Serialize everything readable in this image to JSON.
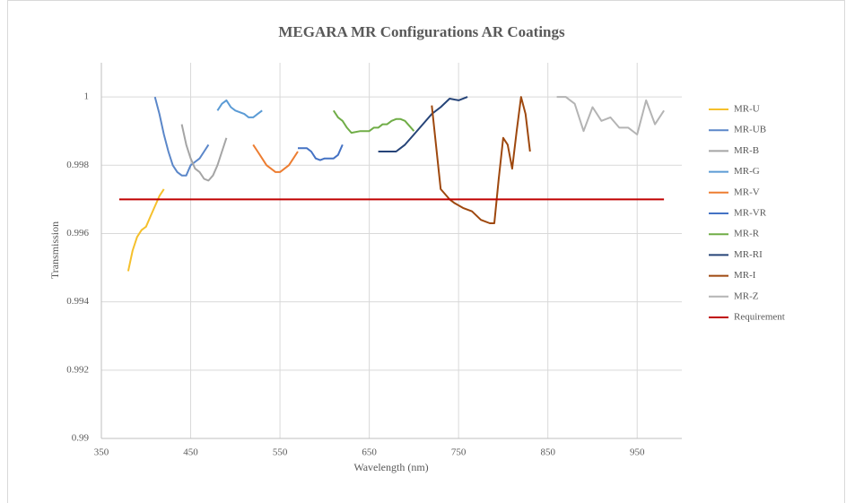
{
  "chart_data": {
    "type": "line",
    "title": "MEGARA MR Configurations AR Coatings",
    "x_label": "Wavelength (nm)",
    "y_label": "Transmission",
    "xlim": [
      350,
      1000
    ],
    "xticks": [
      350,
      450,
      550,
      650,
      750,
      850,
      950
    ],
    "ylim": [
      0.99,
      1.001
    ],
    "yticks": [
      0.99,
      0.992,
      0.994,
      0.996,
      0.998,
      1
    ],
    "grid": true,
    "legend": "right",
    "series": [
      {
        "name": "MR-U",
        "color": "#f5c02c",
        "x": [
          380,
          385,
          390,
          395,
          400,
          405,
          410,
          415,
          420
        ],
        "values": [
          0.9949,
          0.9955,
          0.9959,
          0.9961,
          0.9962,
          0.9965,
          0.9968,
          0.9971,
          0.9973
        ]
      },
      {
        "name": "MR-UB",
        "color": "#5b87c9",
        "x": [
          410,
          415,
          420,
          425,
          430,
          435,
          440,
          445,
          450,
          455,
          460,
          465,
          470
        ],
        "values": [
          1.0,
          0.9995,
          0.9989,
          0.9984,
          0.998,
          0.9978,
          0.9977,
          0.9977,
          0.998,
          0.9981,
          0.9982,
          0.9984,
          0.9986
        ]
      },
      {
        "name": "MR-B",
        "color": "#a5a5a5",
        "x": [
          440,
          445,
          450,
          455,
          460,
          465,
          470,
          475,
          480,
          485,
          490
        ],
        "values": [
          0.9992,
          0.9986,
          0.9982,
          0.9979,
          0.9978,
          0.9976,
          0.99755,
          0.9977,
          0.998,
          0.9984,
          0.9988
        ]
      },
      {
        "name": "MR-G",
        "color": "#5b9bd5",
        "x": [
          480,
          485,
          490,
          495,
          500,
          510,
          515,
          520,
          525,
          530
        ],
        "values": [
          0.9996,
          0.9998,
          0.9999,
          0.9997,
          0.9996,
          0.9995,
          0.9994,
          0.9994,
          0.9995,
          0.9996
        ]
      },
      {
        "name": "MR-V",
        "color": "#ed7d31",
        "x": [
          520,
          525,
          530,
          535,
          540,
          545,
          550,
          555,
          560,
          565,
          570
        ],
        "values": [
          0.9986,
          0.9984,
          0.9982,
          0.998,
          0.9979,
          0.9978,
          0.9978,
          0.9979,
          0.998,
          0.9982,
          0.9984
        ]
      },
      {
        "name": "MR-VR",
        "color": "#4472c4",
        "x": [
          570,
          580,
          585,
          590,
          595,
          600,
          605,
          610,
          615,
          620
        ],
        "values": [
          0.9985,
          0.9985,
          0.9984,
          0.9982,
          0.99815,
          0.9982,
          0.9982,
          0.9982,
          0.9983,
          0.9986
        ]
      },
      {
        "name": "MR-R",
        "color": "#70ad47",
        "x": [
          610,
          615,
          620,
          625,
          630,
          640,
          650,
          655,
          660,
          665,
          670,
          675,
          680,
          685,
          690,
          700
        ],
        "values": [
          0.9996,
          0.9994,
          0.9993,
          0.9991,
          0.99895,
          0.999,
          0.999,
          0.9991,
          0.9991,
          0.9992,
          0.9992,
          0.9993,
          0.99935,
          0.99935,
          0.9993,
          0.999
        ]
      },
      {
        "name": "MR-RI",
        "color": "#264478",
        "x": [
          660,
          670,
          680,
          685,
          690,
          700,
          710,
          720,
          730,
          740,
          750,
          760
        ],
        "values": [
          0.9984,
          0.9984,
          0.9984,
          0.9985,
          0.9986,
          0.9989,
          0.9992,
          0.9995,
          0.9997,
          0.99995,
          0.9999,
          1.0
        ]
      },
      {
        "name": "MR-I",
        "color": "#9e480e",
        "x": [
          720,
          730,
          740,
          745,
          755,
          765,
          775,
          785,
          790,
          795,
          800,
          805,
          810,
          815,
          820,
          825,
          830
        ],
        "values": [
          0.99975,
          0.9973,
          0.997,
          0.9969,
          0.99675,
          0.99665,
          0.9964,
          0.9963,
          0.9963,
          0.9976,
          0.9988,
          0.9986,
          0.9979,
          0.999,
          1.0,
          0.9995,
          0.9984
        ]
      },
      {
        "name": "MR-Z",
        "color": "#b4b4b4",
        "x": [
          860,
          870,
          880,
          890,
          900,
          910,
          920,
          930,
          940,
          950,
          960,
          970,
          980
        ],
        "values": [
          1.0,
          1.0,
          0.9998,
          0.999,
          0.9997,
          0.9993,
          0.9994,
          0.9991,
          0.9991,
          0.9989,
          0.9999,
          0.9992,
          0.9996
        ]
      },
      {
        "name": "Requirement",
        "color": "#c00000",
        "x": [
          370,
          980
        ],
        "values": [
          0.997,
          0.997
        ]
      }
    ]
  }
}
